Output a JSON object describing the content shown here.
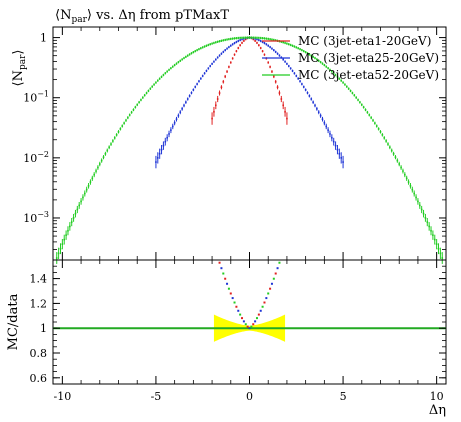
{
  "chart_data": [
    {
      "type": "scatter",
      "title": "⟨N_par⟩ vs. Δη from pTMaxT",
      "title_main": "⟨N",
      "title_sub": "par",
      "title_rest": "⟩ vs. Δη from pTMaxT",
      "ylabel_main": "⟨N",
      "ylabel_sub": "par",
      "ylabel_close": "⟩",
      "yscale": "log",
      "ylim": [
        0.0002,
        1.5
      ],
      "xlim": [
        -10.5,
        10.5
      ],
      "y_ticks": [
        {
          "value": 1,
          "label": "1"
        },
        {
          "value": 0.1,
          "label": "10",
          "exp": "−1"
        },
        {
          "value": 0.01,
          "label": "10",
          "exp": "−2"
        },
        {
          "value": 0.001,
          "label": "10",
          "exp": "−3"
        }
      ],
      "legend_position": "top-right",
      "series": [
        {
          "name": "MC (3jet-eta1-20GeV)",
          "color": "#e02020",
          "half_width": 2.0,
          "edge_value": 0.045,
          "step": 0.1
        },
        {
          "name": "MC (3jet-eta25-20GeV)",
          "color": "#1f35d6",
          "half_width": 5.0,
          "edge_value": 0.0085,
          "step": 0.1
        },
        {
          "name": "MC (3jet-eta52-20GeV)",
          "color": "#22cc22",
          "half_width": 10.4,
          "edge_value": 0.00018,
          "step": 0.1
        }
      ]
    },
    {
      "type": "scatter",
      "ylabel": "MC/data",
      "xlabel": "Δη",
      "xlim": [
        -10.5,
        10.5
      ],
      "ylim": [
        0.55,
        1.55
      ],
      "x_ticks": [
        {
          "value": -10,
          "label": "-10"
        },
        {
          "value": -5,
          "label": "-5"
        },
        {
          "value": 0,
          "label": "0"
        },
        {
          "value": 5,
          "label": "5"
        },
        {
          "value": 10,
          "label": "10"
        }
      ],
      "y_ticks": [
        {
          "value": 1.4,
          "label": "1.4"
        },
        {
          "value": 1.2,
          "label": "1.2"
        },
        {
          "value": 1.0,
          "label": "1"
        },
        {
          "value": 0.8,
          "label": "0.8"
        },
        {
          "value": 0.6,
          "label": "0.6"
        }
      ],
      "reference_line": {
        "value": 1.0,
        "color": "#22aa22"
      },
      "uncertainty_band": {
        "color": "#ffff00",
        "x_range": [
          -1.9,
          1.9
        ],
        "half_height_center": 0.02,
        "half_height_edge": 0.11
      },
      "ratio_points": [
        {
          "series": "MC (3jet-eta1-20GeV)",
          "color": "#e02020"
        },
        {
          "series": "MC (3jet-eta25-20GeV)",
          "color": "#1f35d6"
        },
        {
          "series": "MC (3jet-eta52-20GeV)",
          "color": "#22cc22"
        }
      ]
    }
  ]
}
